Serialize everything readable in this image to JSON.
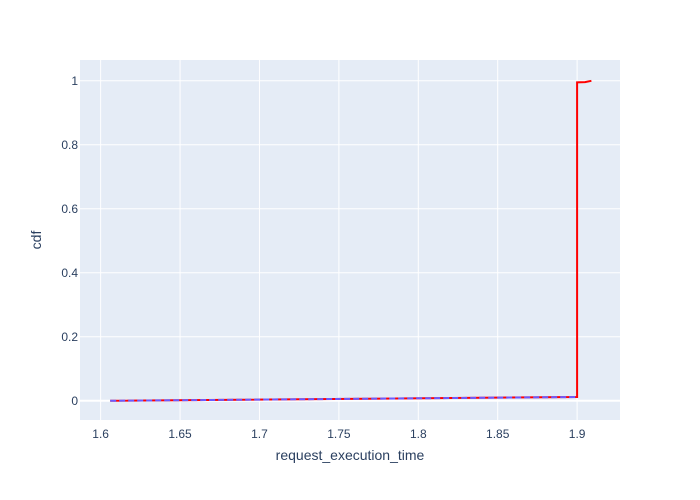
{
  "chart_data": {
    "type": "line",
    "xlabel": "request_execution_time",
    "ylabel": "cdf",
    "xlim": [
      1.587,
      1.927
    ],
    "ylim": [
      -0.06,
      1.065
    ],
    "x_ticks": [
      1.6,
      1.65,
      1.7,
      1.75,
      1.8,
      1.85,
      1.9
    ],
    "x_tick_labels": [
      "1.6",
      "1.65",
      "1.7",
      "1.75",
      "1.8",
      "1.85",
      "1.9"
    ],
    "y_ticks": [
      0,
      0.2,
      0.4,
      0.6,
      0.8,
      1
    ],
    "y_tick_labels": [
      "0",
      "0.2",
      "0.4",
      "0.6",
      "0.8",
      "1"
    ],
    "grid": true,
    "background": "#e5ecf6",
    "series": [
      {
        "color": "#ff0000",
        "x": [
          1.606,
          1.9,
          1.9,
          1.905,
          1.909
        ],
        "y": [
          0.0,
          0.012,
          0.995,
          0.996,
          1.0
        ]
      },
      {
        "color": "#6a5cff",
        "dash": true,
        "x": [
          1.606,
          1.9
        ],
        "y": [
          0.0,
          0.012
        ]
      }
    ]
  }
}
